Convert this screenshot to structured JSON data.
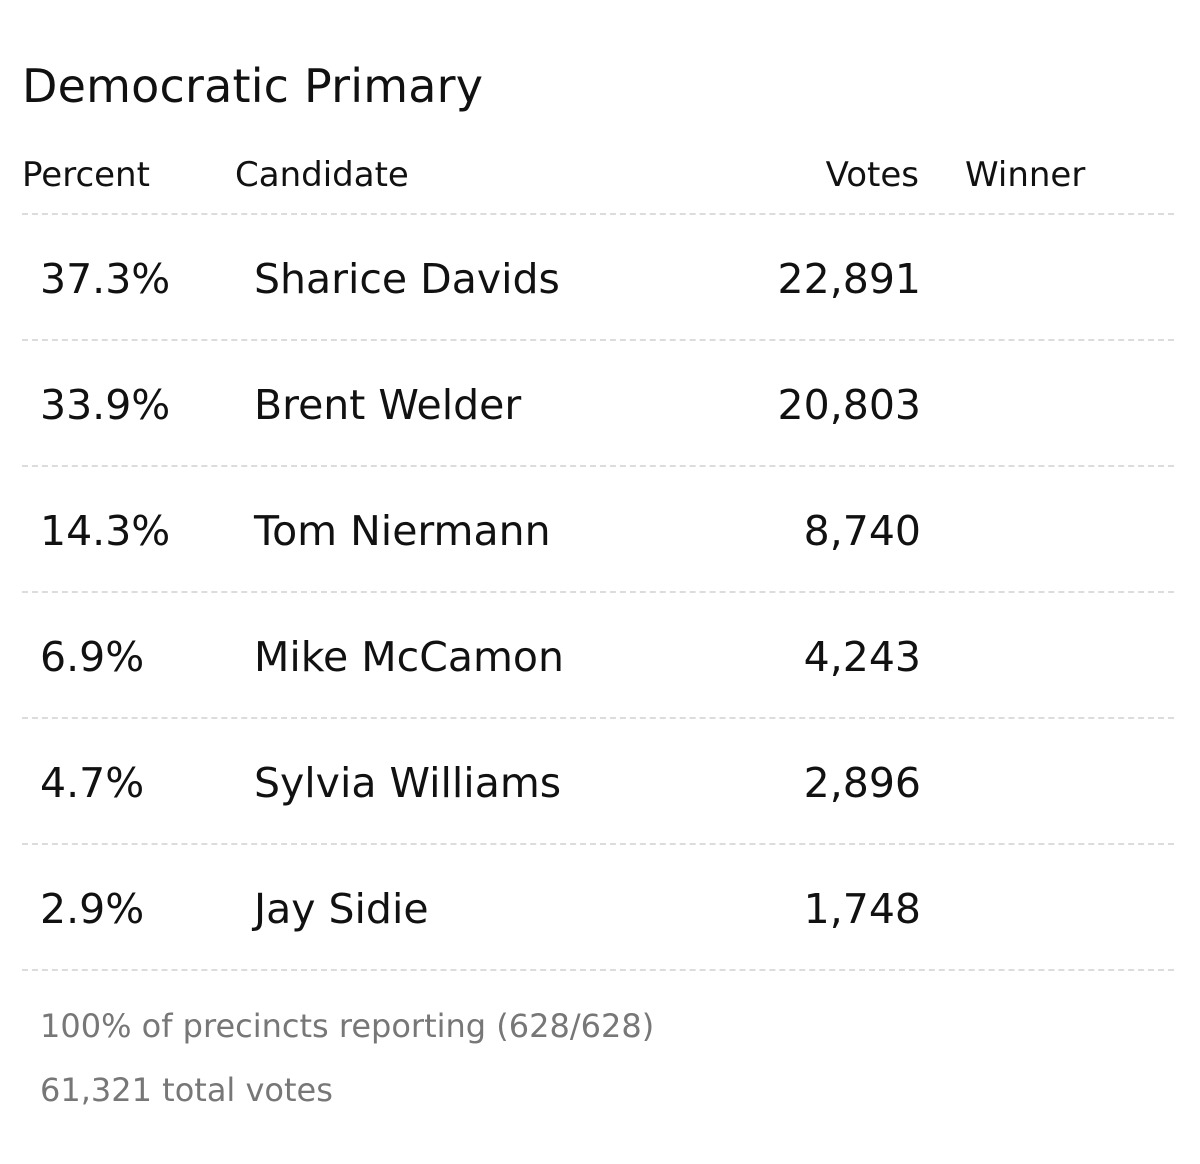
{
  "title": "Democratic Primary",
  "columns": {
    "percent": "Percent",
    "candidate": "Candidate",
    "votes": "Votes",
    "winner": "Winner"
  },
  "rows": [
    {
      "percent": "37.3%",
      "candidate": "Sharice Davids",
      "votes": "22,891",
      "winner": ""
    },
    {
      "percent": "33.9%",
      "candidate": "Brent Welder",
      "votes": "20,803",
      "winner": ""
    },
    {
      "percent": "14.3%",
      "candidate": "Tom Niermann",
      "votes": "8,740",
      "winner": ""
    },
    {
      "percent": "6.9%",
      "candidate": "Mike McCamon",
      "votes": "4,243",
      "winner": ""
    },
    {
      "percent": "4.7%",
      "candidate": "Sylvia Williams",
      "votes": "2,896",
      "winner": ""
    },
    {
      "percent": "2.9%",
      "candidate": "Jay Sidie",
      "votes": "1,748",
      "winner": ""
    }
  ],
  "footer": {
    "precincts": "100% of precincts reporting (628/628)",
    "total_votes": "61,321 total votes"
  }
}
